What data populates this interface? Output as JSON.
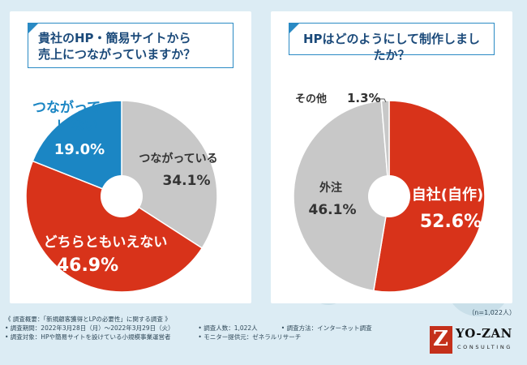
{
  "colors": {
    "blue": "#1b86c4",
    "gray": "#c8c8c8",
    "red": "#d8331a",
    "background": "#dcecf4"
  },
  "left": {
    "question_line1": "貴社のHP・簡易サイトから",
    "question_line2": "売上につながっていますか？"
  },
  "right": {
    "question": "HPはどのようにして制作しましたか？"
  },
  "chart_data": [
    {
      "type": "pie",
      "title": "貴社のHP・簡易サイトから売上につながっていますか？",
      "donut": true,
      "slices": [
        {
          "label": "つながっていない",
          "value": 19.0,
          "display": "19.0%",
          "color": "#1b86c4"
        },
        {
          "label": "つながっている",
          "value": 34.1,
          "display": "34.1%",
          "color": "#c8c8c8"
        },
        {
          "label": "どちらともいえない",
          "value": 46.9,
          "display": "46.9%",
          "color": "#d8331a"
        }
      ]
    },
    {
      "type": "pie",
      "title": "HPはどのようにして制作しましたか？",
      "donut": true,
      "slices": [
        {
          "label": "自社(自作)",
          "value": 52.6,
          "display": "52.6%",
          "color": "#d8331a"
        },
        {
          "label": "外注",
          "value": 46.1,
          "display": "46.1%",
          "color": "#c8c8c8"
        },
        {
          "label": "その他",
          "value": 1.3,
          "display": "1.3%",
          "color": "#c8c8c8"
        }
      ]
    }
  ],
  "footer": {
    "overview": "《 調査概要：「新規顧客獲得とLPの必要性」に関する調査 》",
    "period": "• 調査期間：2022年3月28日（月）～2022年3月29日（火）",
    "people": "• 調査人数：1,022人",
    "method": "• 調査方法：インターネット調査",
    "target": "• 調査対象：HPや簡易サイトを設けている小規模事業運営者",
    "provider": "• モニター提供元：ゼネラルリサーチ"
  },
  "n_note": "（n=1,022人）",
  "logo": {
    "mark": "Z",
    "name": "YO-ZAN",
    "sub": "CONSULTING"
  }
}
